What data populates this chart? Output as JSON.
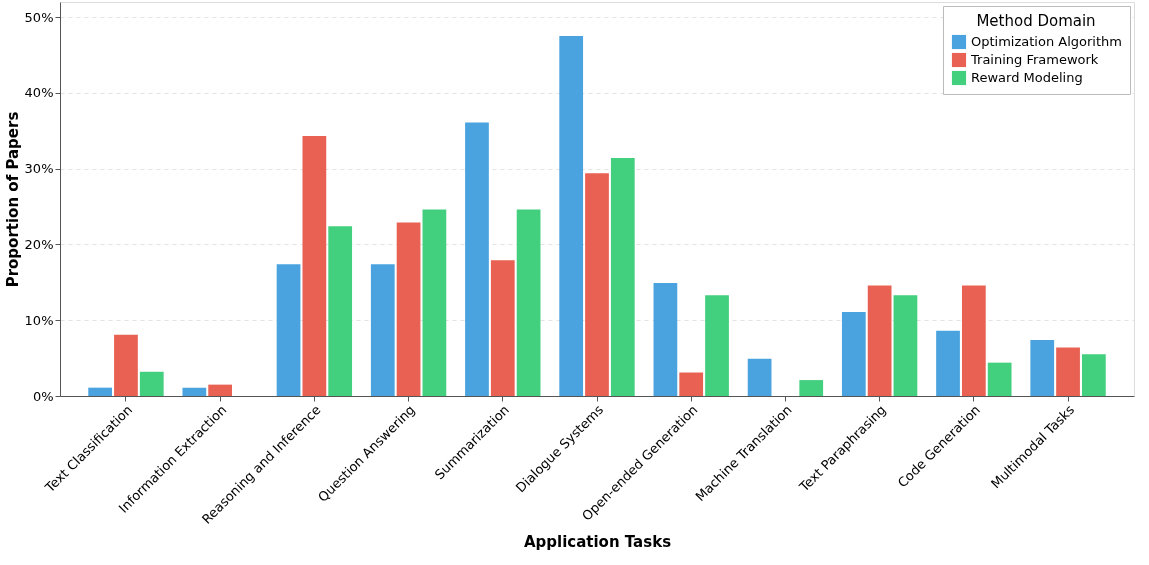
{
  "chart_data": {
    "type": "bar",
    "xlabel": "Application Tasks",
    "ylabel": "Proportion of Papers",
    "legend_title": "Method Domain",
    "categories": [
      "Text Classification",
      "Information Extraction",
      "Reasoning and Inference",
      "Question Answering",
      "Summarization",
      "Dialogue Systems",
      "Open-ended Generation",
      "Machine Translation",
      "Text Paraphrasing",
      "Code Generation",
      "Multimodal Tasks"
    ],
    "series": [
      {
        "name": "Optimization Algorithm",
        "color": "#4aa3df",
        "values": [
          1.1,
          1.1,
          17.4,
          17.4,
          36.1,
          47.5,
          14.9,
          4.9,
          11.1,
          8.6,
          7.4
        ]
      },
      {
        "name": "Training Framework",
        "color": "#e86152",
        "values": [
          8.1,
          1.5,
          34.3,
          22.9,
          17.9,
          29.4,
          3.1,
          0,
          14.6,
          14.6,
          6.4
        ]
      },
      {
        "name": "Reward Modeling",
        "color": "#42cf7e",
        "values": [
          3.2,
          0,
          22.4,
          24.6,
          24.6,
          31.4,
          13.3,
          2.1,
          13.3,
          4.4,
          5.5
        ]
      }
    ],
    "ylim": [
      0,
      52
    ],
    "yticks": [
      {
        "value": 0,
        "label": "0%"
      },
      {
        "value": 10,
        "label": "10%"
      },
      {
        "value": 20,
        "label": "20%"
      },
      {
        "value": 30,
        "label": "30%"
      },
      {
        "value": 40,
        "label": "40%"
      },
      {
        "value": 50,
        "label": "50%"
      }
    ],
    "grid": "y",
    "legend": "top right"
  }
}
